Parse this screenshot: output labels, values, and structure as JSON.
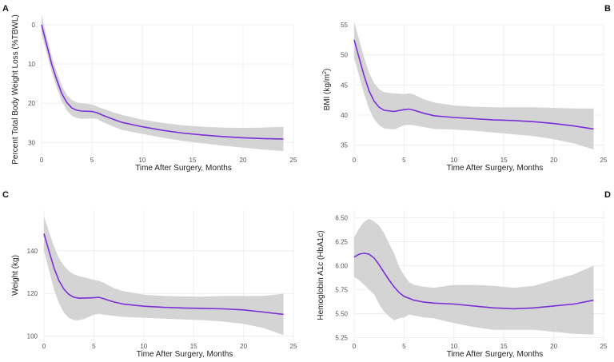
{
  "chart_data": [
    {
      "type": "line",
      "panel": "A",
      "xlabel": "Time After Surgery, Months",
      "ylabel": "Percent Total Body Weight Loss (%TBWL)",
      "xlim": [
        0,
        25
      ],
      "ylim": [
        0,
        33
      ],
      "y_reversed": true,
      "xticks": [
        "0",
        "5",
        "10",
        "15",
        "20",
        "25"
      ],
      "yticks": [
        "0",
        "10",
        "20",
        "30"
      ],
      "grid": true,
      "line_color": "#7b2fd6",
      "band_color": "#cfcfcf",
      "series": [
        {
          "x": [
            0,
            0.5,
            1,
            1.5,
            2,
            2.5,
            3,
            3.5,
            4,
            5,
            5.5,
            6,
            7,
            8,
            10,
            12,
            14,
            16,
            18,
            20,
            22,
            24
          ],
          "y": [
            0,
            5,
            10,
            14,
            17.5,
            19.8,
            21.2,
            21.8,
            22,
            22.1,
            22.4,
            23,
            24,
            24.9,
            26,
            26.9,
            27.6,
            28.1,
            28.5,
            28.8,
            29,
            29.1
          ],
          "lower": [
            -2.5,
            3,
            8,
            12,
            15.5,
            17.8,
            19.2,
            19.8,
            20,
            20.3,
            20.8,
            21.3,
            22.2,
            23,
            24.2,
            25,
            25.6,
            26,
            26.2,
            26.3,
            26.2,
            26
          ],
          "upper": [
            2.5,
            7,
            12,
            16,
            19.5,
            21.8,
            23.2,
            23.8,
            24,
            23.9,
            24,
            24.7,
            25.8,
            26.8,
            27.8,
            28.8,
            29.6,
            30.2,
            30.8,
            31.3,
            31.8,
            32.2
          ]
        }
      ]
    },
    {
      "type": "line",
      "panel": "B",
      "xlabel": "Time After Surgery, Months",
      "ylabel": "BMI (kg/m",
      "ylabel_sup": "2",
      "ylabel_end": ")",
      "xlim": [
        0,
        25
      ],
      "ylim": [
        33.5,
        55
      ],
      "y_reversed": false,
      "xticks": [
        "0",
        "5",
        "10",
        "15",
        "20",
        "25"
      ],
      "yticks": [
        "35",
        "40",
        "45",
        "50",
        "55"
      ],
      "grid": true,
      "line_color": "#7b2fd6",
      "band_color": "#cfcfcf",
      "series": [
        {
          "x": [
            0,
            0.5,
            1,
            1.5,
            2,
            2.5,
            3,
            4,
            5,
            5.5,
            6,
            7,
            8,
            10,
            12,
            14,
            16,
            18,
            20,
            22,
            24
          ],
          "y": [
            52.5,
            49.5,
            46.5,
            44,
            42.3,
            41.3,
            40.8,
            40.6,
            40.9,
            41,
            40.8,
            40.3,
            39.9,
            39.6,
            39.4,
            39.2,
            39.1,
            38.9,
            38.6,
            38.2,
            37.7
          ],
          "lower": [
            49.5,
            46.5,
            43.5,
            41,
            39.3,
            38.3,
            37.8,
            37.6,
            38.3,
            38.4,
            38.3,
            38,
            37.7,
            37.6,
            37.4,
            37.1,
            36.8,
            36.5,
            36,
            35.3,
            34.3
          ],
          "upper": [
            55.5,
            52.5,
            49.5,
            47,
            45.3,
            44.3,
            43.8,
            43.6,
            43.5,
            43.6,
            43.4,
            42.6,
            42.1,
            41.6,
            41.4,
            41.3,
            41.3,
            41.3,
            41.2,
            41.1,
            41.1
          ]
        }
      ]
    },
    {
      "type": "line",
      "panel": "C",
      "xlabel": "Time After Surgery, Months",
      "ylabel": "Weight (kg)",
      "xlim": [
        0,
        25
      ],
      "ylim": [
        98,
        159
      ],
      "y_reversed": false,
      "xticks": [
        "0",
        "5",
        "10",
        "15",
        "20",
        "25"
      ],
      "yticks": [
        "100",
        "120",
        "140"
      ],
      "grid": true,
      "line_color": "#7b2fd6",
      "band_color": "#cfcfcf",
      "series": [
        {
          "x": [
            0,
            0.5,
            1,
            1.5,
            2,
            2.5,
            3,
            3.5,
            4,
            5,
            5.5,
            6,
            7,
            8,
            10,
            12,
            14,
            16,
            18,
            20,
            22,
            24
          ],
          "y": [
            148,
            140,
            132,
            126,
            122,
            119.5,
            118.2,
            117.8,
            117.8,
            118,
            118.2,
            117.5,
            116,
            115,
            114,
            113.5,
            113.2,
            113,
            112.8,
            112.3,
            111.3,
            110.2
          ],
          "lower": [
            140,
            131,
            122,
            115.5,
            111,
            108.5,
            107.5,
            107.5,
            108,
            110,
            110.5,
            110,
            109.5,
            109,
            108.6,
            108.2,
            107.8,
            107.5,
            106.8,
            105.8,
            103.8,
            100.5
          ],
          "upper": [
            156,
            149,
            142,
            136.5,
            133,
            130.5,
            129,
            128.1,
            127.6,
            126.3,
            125.9,
            125,
            122.5,
            121,
            119.4,
            118.8,
            118.6,
            118.5,
            118.8,
            118.8,
            118.8,
            119.9
          ]
        }
      ]
    },
    {
      "type": "line",
      "panel": "D",
      "xlabel": "Time After Surgery, Months",
      "ylabel": "Hemoglobin A1c (HbA1c)",
      "xlim": [
        0,
        25
      ],
      "ylim": [
        5.22,
        6.58
      ],
      "y_reversed": false,
      "xticks": [
        "0",
        "5",
        "10",
        "15",
        "20",
        "25"
      ],
      "yticks": [
        "5.25",
        "5.50",
        "5.75",
        "6.00",
        "6.25",
        "6.50"
      ],
      "grid": true,
      "line_color": "#7b2fd6",
      "band_color": "#cfcfcf",
      "series": [
        {
          "x": [
            0,
            0.5,
            1,
            1.5,
            2,
            2.5,
            3,
            3.5,
            4,
            4.5,
            5,
            5.5,
            6,
            7,
            8,
            10,
            12,
            14,
            16,
            18,
            20,
            22,
            24
          ],
          "y": [
            6.09,
            6.12,
            6.13,
            6.12,
            6.08,
            6.01,
            5.93,
            5.85,
            5.78,
            5.72,
            5.68,
            5.66,
            5.64,
            5.62,
            5.61,
            5.6,
            5.58,
            5.56,
            5.55,
            5.56,
            5.58,
            5.6,
            5.64
          ],
          "lower": [
            5.88,
            5.85,
            5.8,
            5.75,
            5.7,
            5.6,
            5.52,
            5.47,
            5.43,
            5.45,
            5.46,
            5.49,
            5.48,
            5.46,
            5.45,
            5.4,
            5.36,
            5.33,
            5.33,
            5.33,
            5.31,
            5.29,
            5.28
          ],
          "upper": [
            6.3,
            6.39,
            6.46,
            6.49,
            6.46,
            6.42,
            6.34,
            6.23,
            6.13,
            5.99,
            5.9,
            5.83,
            5.8,
            5.78,
            5.77,
            5.8,
            5.8,
            5.79,
            5.77,
            5.79,
            5.85,
            5.91,
            6.0
          ]
        }
      ]
    }
  ]
}
